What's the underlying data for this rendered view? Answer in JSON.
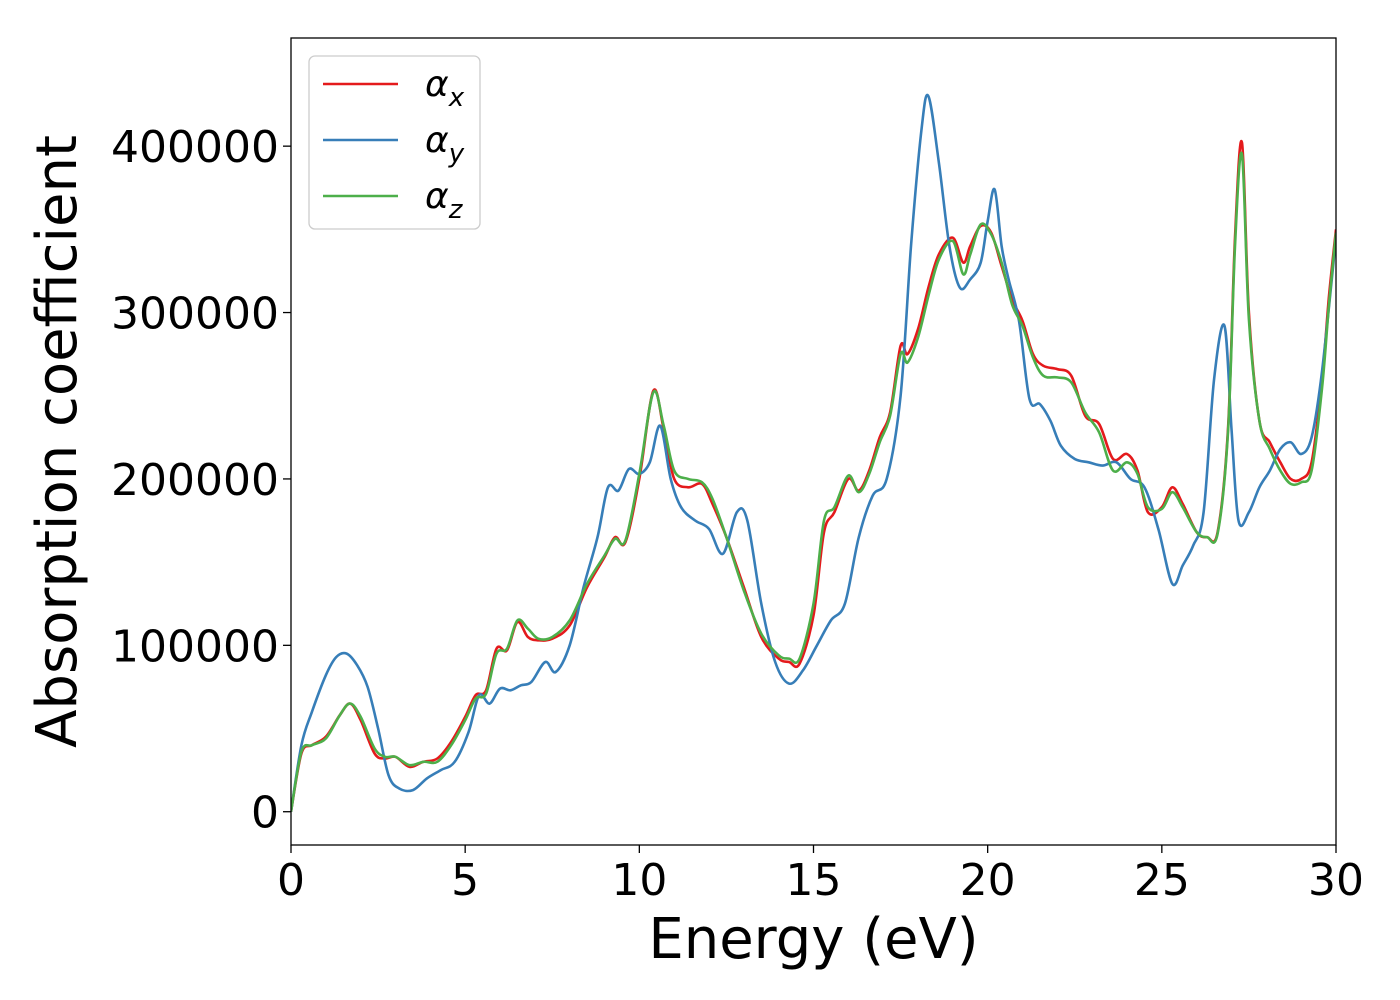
{
  "chart_data": {
    "type": "line",
    "title": "",
    "xlabel": "Energy (eV)",
    "ylabel": "Absorption coefficient",
    "xlim": [
      0,
      30
    ],
    "ylim": [
      -20000,
      465000
    ],
    "xticks": [
      0,
      5,
      10,
      15,
      20,
      25,
      30
    ],
    "xtick_labels": [
      "0",
      "5",
      "10",
      "15",
      "20",
      "25",
      "30"
    ],
    "yticks": [
      0,
      100000,
      200000,
      300000,
      400000
    ],
    "ytick_labels": [
      "0",
      "100000",
      "200000",
      "300000",
      "400000"
    ],
    "grid": false,
    "legend": {
      "location": "upper-left"
    },
    "series": [
      {
        "name": "αx",
        "symbol": "α",
        "subscript": "x",
        "color": "#e41a1c",
        "x": [
          0,
          0.3,
          0.6,
          1.0,
          1.4,
          1.7,
          2.0,
          2.4,
          2.7,
          3.0,
          3.4,
          3.8,
          4.2,
          4.6,
          5.0,
          5.3,
          5.6,
          5.9,
          6.2,
          6.5,
          6.8,
          7.1,
          7.5,
          8.0,
          8.5,
          9.0,
          9.3,
          9.6,
          10.0,
          10.4,
          10.7,
          11.0,
          11.4,
          11.8,
          12.1,
          12.5,
          13.0,
          13.5,
          14.0,
          14.3,
          14.6,
          15.0,
          15.3,
          15.6,
          16.0,
          16.3,
          16.6,
          16.9,
          17.2,
          17.5,
          17.7,
          18.0,
          18.3,
          18.6,
          19.0,
          19.3,
          19.5,
          19.8,
          20.1,
          20.4,
          20.7,
          21.0,
          21.3,
          21.6,
          22.0,
          22.4,
          22.8,
          23.2,
          23.6,
          24.0,
          24.3,
          24.6,
          25.0,
          25.3,
          25.6,
          26.0,
          26.3,
          26.6,
          26.9,
          27.1,
          27.3,
          27.5,
          27.8,
          28.1,
          28.4,
          28.7,
          29.0,
          29.3,
          29.6,
          29.8,
          30.0
        ],
        "y": [
          0,
          35000,
          40000,
          45000,
          58000,
          65000,
          55000,
          35000,
          32000,
          33000,
          27000,
          30000,
          32000,
          42000,
          57000,
          70000,
          73000,
          98000,
          97000,
          114000,
          105000,
          103000,
          104000,
          112000,
          135000,
          153000,
          165000,
          162000,
          200000,
          253000,
          230000,
          200000,
          195000,
          197000,
          185000,
          165000,
          135000,
          105000,
          92000,
          90000,
          89000,
          118000,
          168000,
          180000,
          200000,
          193000,
          205000,
          225000,
          240000,
          280000,
          275000,
          290000,
          315000,
          335000,
          345000,
          330000,
          340000,
          352000,
          348000,
          328000,
          308000,
          295000,
          275000,
          268000,
          266000,
          262000,
          238000,
          233000,
          212000,
          215000,
          205000,
          180000,
          183000,
          195000,
          185000,
          168000,
          165000,
          168000,
          230000,
          345000,
          402000,
          300000,
          235000,
          222000,
          210000,
          200000,
          200000,
          210000,
          260000,
          310000,
          350000
        ]
      },
      {
        "name": "αy",
        "symbol": "α",
        "subscript": "y",
        "color": "#377eb8",
        "x": [
          0,
          0.3,
          0.6,
          1.0,
          1.3,
          1.6,
          1.9,
          2.2,
          2.5,
          2.8,
          3.1,
          3.5,
          3.9,
          4.3,
          4.7,
          5.1,
          5.4,
          5.7,
          6.0,
          6.3,
          6.6,
          6.9,
          7.3,
          7.6,
          8.0,
          8.4,
          8.8,
          9.1,
          9.4,
          9.7,
          10.0,
          10.3,
          10.6,
          10.9,
          11.2,
          11.6,
          12.0,
          12.4,
          12.8,
          13.1,
          13.5,
          13.9,
          14.3,
          14.7,
          15.1,
          15.5,
          15.9,
          16.3,
          16.7,
          17.1,
          17.5,
          17.8,
          18.1,
          18.3,
          18.6,
          18.9,
          19.2,
          19.5,
          19.8,
          20.0,
          20.2,
          20.4,
          20.6,
          20.9,
          21.2,
          21.5,
          21.8,
          22.1,
          22.5,
          22.9,
          23.3,
          23.7,
          24.1,
          24.5,
          24.9,
          25.3,
          25.6,
          25.9,
          26.2,
          26.5,
          26.8,
          27.0,
          27.2,
          27.5,
          27.8,
          28.1,
          28.4,
          28.7,
          29.0,
          29.3,
          29.6,
          30.0
        ],
        "y": [
          0,
          40000,
          60000,
          82000,
          93000,
          95000,
          88000,
          75000,
          50000,
          22000,
          14000,
          13000,
          20000,
          25000,
          30000,
          48000,
          70000,
          65000,
          74000,
          73000,
          76000,
          78000,
          90000,
          84000,
          100000,
          135000,
          165000,
          195000,
          193000,
          206000,
          203000,
          210000,
          232000,
          200000,
          183000,
          175000,
          170000,
          155000,
          180000,
          175000,
          125000,
          90000,
          77000,
          85000,
          100000,
          115000,
          125000,
          165000,
          190000,
          200000,
          250000,
          340000,
          410000,
          430000,
          390000,
          340000,
          315000,
          320000,
          330000,
          355000,
          374000,
          340000,
          320000,
          295000,
          248000,
          245000,
          235000,
          220000,
          212000,
          210000,
          208000,
          210000,
          200000,
          195000,
          170000,
          137000,
          148000,
          160000,
          180000,
          260000,
          292000,
          230000,
          175000,
          180000,
          195000,
          205000,
          218000,
          222000,
          215000,
          225000,
          265000,
          345000
        ]
      },
      {
        "name": "αz",
        "symbol": "α",
        "subscript": "z",
        "color": "#4daf4a",
        "x": [
          0,
          0.3,
          0.6,
          1.0,
          1.4,
          1.7,
          2.0,
          2.4,
          2.7,
          3.0,
          3.4,
          3.8,
          4.2,
          4.6,
          5.0,
          5.3,
          5.6,
          5.9,
          6.2,
          6.5,
          6.8,
          7.1,
          7.5,
          8.0,
          8.5,
          9.0,
          9.3,
          9.6,
          10.0,
          10.4,
          10.7,
          11.0,
          11.4,
          11.8,
          12.1,
          12.5,
          13.0,
          13.5,
          14.0,
          14.3,
          14.6,
          15.0,
          15.3,
          15.6,
          16.0,
          16.3,
          16.6,
          16.9,
          17.2,
          17.5,
          17.7,
          18.0,
          18.3,
          18.6,
          19.0,
          19.3,
          19.5,
          19.8,
          20.1,
          20.4,
          20.7,
          21.0,
          21.3,
          21.6,
          22.0,
          22.4,
          22.8,
          23.2,
          23.6,
          24.0,
          24.3,
          24.6,
          25.0,
          25.3,
          25.6,
          26.0,
          26.3,
          26.6,
          26.9,
          27.1,
          27.3,
          27.5,
          27.8,
          28.1,
          28.4,
          28.7,
          29.0,
          29.3,
          29.6,
          29.8,
          30.0
        ],
        "y": [
          0,
          36000,
          40000,
          44000,
          58000,
          65000,
          57000,
          38000,
          33000,
          33000,
          28000,
          30000,
          30000,
          40000,
          55000,
          68000,
          71000,
          95000,
          98000,
          115000,
          110000,
          104000,
          105000,
          115000,
          137000,
          154000,
          164000,
          163000,
          203000,
          252000,
          232000,
          205000,
          200000,
          198000,
          188000,
          165000,
          133000,
          107000,
          94000,
          92000,
          92000,
          125000,
          175000,
          183000,
          202000,
          192000,
          203000,
          222000,
          238000,
          275000,
          270000,
          285000,
          310000,
          332000,
          343000,
          323000,
          335000,
          353000,
          347000,
          330000,
          305000,
          292000,
          273000,
          262000,
          261000,
          258000,
          240000,
          228000,
          205000,
          210000,
          203000,
          183000,
          182000,
          192000,
          183000,
          168000,
          165000,
          167000,
          228000,
          340000,
          395000,
          296000,
          235000,
          218000,
          205000,
          197000,
          198000,
          205000,
          255000,
          305000,
          348000
        ]
      }
    ]
  }
}
